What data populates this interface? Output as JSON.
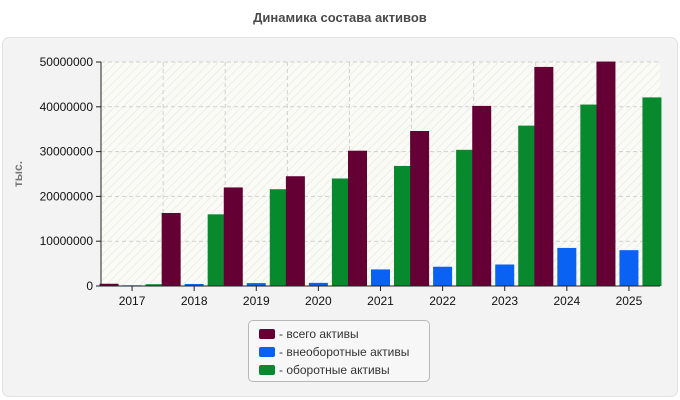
{
  "chart_data": {
    "type": "bar",
    "title": "Динамика состава активов",
    "ylabel": "тыс.",
    "xlabel": "",
    "categories": [
      "2017",
      "2018",
      "2019",
      "2020",
      "2021",
      "2022",
      "2023",
      "2024",
      "2025"
    ],
    "ylim": [
      0,
      50000000
    ],
    "yticks": [
      "0",
      "10000000",
      "20000000",
      "30000000",
      "40000000",
      "50000000"
    ],
    "grid": true,
    "legend_position": "bottom",
    "series": [
      {
        "name": "- всего активы",
        "color": "#650035",
        "values": [
          500000,
          16300000,
          22000000,
          24500000,
          30200000,
          34600000,
          40200000,
          48900000,
          50100000
        ]
      },
      {
        "name": "- внеоборотные активы",
        "color": "#0a62f2",
        "values": [
          150000,
          450000,
          650000,
          700000,
          3700000,
          4300000,
          4800000,
          8500000,
          8000000
        ]
      },
      {
        "name": "- оборотные активы",
        "color": "#08892e",
        "values": [
          400000,
          16000000,
          21600000,
          24000000,
          26800000,
          30400000,
          35800000,
          40500000,
          42100000
        ]
      }
    ]
  }
}
